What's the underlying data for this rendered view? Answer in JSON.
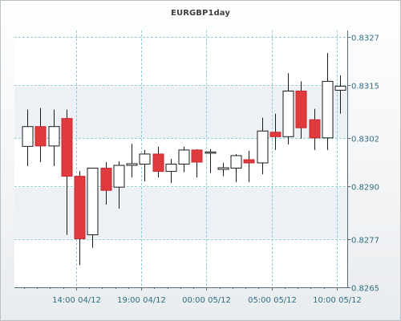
{
  "chart_data": {
    "type": "candlestick",
    "title": "EURGBP1day",
    "xlabel": "",
    "ylabel": "",
    "ylim": [
      0.8265,
      0.8327
    ],
    "y_ticks": [
      "0.8327",
      "0.8315",
      "0.8302",
      "0.8290",
      "0.8277",
      "0.8265"
    ],
    "x_ticks": [
      {
        "label": "14:00 04/12",
        "index": 3.75
      },
      {
        "label": "19:00 04/12",
        "index": 8.75
      },
      {
        "label": "00:00 05/12",
        "index": 13.75
      },
      {
        "label": "05:00 05/12",
        "index": 18.75
      },
      {
        "label": "10:00 05/12",
        "index": 23.75
      }
    ],
    "grid": true,
    "bull_color": "#ffffff",
    "bear_color": "#e0393e",
    "candles": [
      {
        "o": 0.82999,
        "h": 0.8309,
        "l": 0.8295,
        "c": 0.83048
      },
      {
        "o": 0.83048,
        "h": 0.83094,
        "l": 0.8296,
        "c": 0.83
      },
      {
        "o": 0.83,
        "h": 0.8309,
        "l": 0.8295,
        "c": 0.83048
      },
      {
        "o": 0.83068,
        "h": 0.8309,
        "l": 0.8278,
        "c": 0.82925
      },
      {
        "o": 0.82925,
        "h": 0.82938,
        "l": 0.82705,
        "c": 0.8277
      },
      {
        "o": 0.8278,
        "h": 0.82946,
        "l": 0.82748,
        "c": 0.82945
      },
      {
        "o": 0.82945,
        "h": 0.8296,
        "l": 0.82855,
        "c": 0.8289
      },
      {
        "o": 0.82898,
        "h": 0.82962,
        "l": 0.82845,
        "c": 0.82952
      },
      {
        "o": 0.82952,
        "h": 0.83005,
        "l": 0.82922,
        "c": 0.82956
      },
      {
        "o": 0.82955,
        "h": 0.8299,
        "l": 0.82912,
        "c": 0.8298
      },
      {
        "o": 0.8298,
        "h": 0.82998,
        "l": 0.82922,
        "c": 0.82937
      },
      {
        "o": 0.82937,
        "h": 0.82968,
        "l": 0.82908,
        "c": 0.82955
      },
      {
        "o": 0.82955,
        "h": 0.82998,
        "l": 0.82935,
        "c": 0.8299
      },
      {
        "o": 0.8299,
        "h": 0.82992,
        "l": 0.82922,
        "c": 0.8296
      },
      {
        "o": 0.82982,
        "h": 0.82992,
        "l": 0.82933,
        "c": 0.82985
      },
      {
        "o": 0.82942,
        "h": 0.82958,
        "l": 0.82925,
        "c": 0.82946
      },
      {
        "o": 0.82945,
        "h": 0.8298,
        "l": 0.8291,
        "c": 0.82976
      },
      {
        "o": 0.82966,
        "h": 0.82988,
        "l": 0.8291,
        "c": 0.82958
      },
      {
        "o": 0.82958,
        "h": 0.8307,
        "l": 0.8293,
        "c": 0.83037
      },
      {
        "o": 0.83034,
        "h": 0.8308,
        "l": 0.8299,
        "c": 0.83023
      },
      {
        "o": 0.83023,
        "h": 0.8318,
        "l": 0.83004,
        "c": 0.83136
      },
      {
        "o": 0.83136,
        "h": 0.8316,
        "l": 0.83018,
        "c": 0.83045
      },
      {
        "o": 0.83065,
        "h": 0.83092,
        "l": 0.8299,
        "c": 0.8302
      },
      {
        "o": 0.8302,
        "h": 0.8323,
        "l": 0.8299,
        "c": 0.8316
      },
      {
        "o": 0.83138,
        "h": 0.83175,
        "l": 0.8308,
        "c": 0.83148
      }
    ]
  }
}
